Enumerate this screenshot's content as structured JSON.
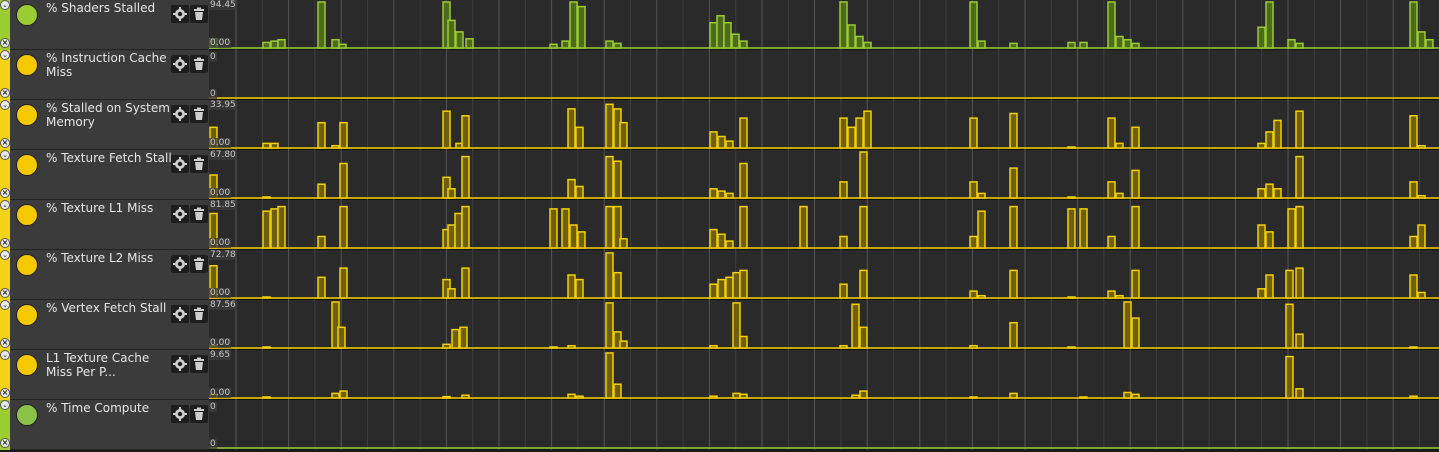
{
  "rows": [
    {
      "name": "% Shaders Stalled",
      "color": "#9acd32",
      "max": "94.45",
      "min": "0.00",
      "stripe": "#9acd32"
    },
    {
      "name": "% Instruction Cache Miss",
      "color": "#f5c900",
      "max": "0",
      "min": "0",
      "stripe": "#f2d31a"
    },
    {
      "name": "% Stalled on System Memory",
      "color": "#f5c900",
      "max": "33.95",
      "min": "0.00",
      "stripe": "#f2d31a"
    },
    {
      "name": "% Texture Fetch Stall",
      "color": "#f5c900",
      "max": "67.80",
      "min": "0.00",
      "stripe": "#f2d31a"
    },
    {
      "name": "% Texture L1 Miss",
      "color": "#f5c900",
      "max": "81.85",
      "min": "0.00",
      "stripe": "#f2d31a"
    },
    {
      "name": "% Texture L2 Miss",
      "color": "#f5c900",
      "max": "72.78",
      "min": "0.00",
      "stripe": "#f2d31a"
    },
    {
      "name": "% Vertex Fetch Stall",
      "color": "#f5c900",
      "max": "87.56",
      "min": "0.00",
      "stripe": "#f2d31a"
    },
    {
      "name": "L1 Texture Cache Miss Per P...",
      "color": "#f5c900",
      "max": "9.65",
      "min": "0.00",
      "stripe": "#f2d31a"
    },
    {
      "name": "% Time Compute",
      "color": "#8bc34a",
      "max": "0",
      "min": "0",
      "stripe": "#9acd32"
    }
  ],
  "icons": {
    "gear": "gear-icon",
    "trash": "trash-icon",
    "remove": "remove-icon",
    "collapse": "collapse-icon"
  },
  "colors": {
    "green_line": "#9acd32",
    "green_fill": "#4e6a1c",
    "yellow_line": "#f5d000",
    "yellow_fill": "#6e5e10",
    "grid": "#3c3c3c",
    "grid_major": "#555555"
  },
  "series": {
    "shaders": {
      "kind": "green",
      "bars": [
        [
          210,
          0.2
        ],
        [
          263,
          0.12
        ],
        [
          271,
          0.15
        ],
        [
          278,
          0.18
        ],
        [
          318,
          1.0
        ],
        [
          332,
          0.18
        ],
        [
          339,
          0.08
        ],
        [
          443,
          1.0
        ],
        [
          448,
          0.6
        ],
        [
          456,
          0.35
        ],
        [
          466,
          0.2
        ],
        [
          550,
          0.08
        ],
        [
          562,
          0.15
        ],
        [
          570,
          1.0
        ],
        [
          578,
          0.9
        ],
        [
          606,
          0.15
        ],
        [
          614,
          0.1
        ],
        [
          710,
          0.55
        ],
        [
          717,
          0.7
        ],
        [
          724,
          0.55
        ],
        [
          732,
          0.3
        ],
        [
          740,
          0.15
        ],
        [
          840,
          1.0
        ],
        [
          848,
          0.5
        ],
        [
          856,
          0.25
        ],
        [
          864,
          0.12
        ],
        [
          970,
          1.0
        ],
        [
          978,
          0.15
        ],
        [
          1010,
          0.1
        ],
        [
          1068,
          0.12
        ],
        [
          1080,
          0.12
        ],
        [
          1108,
          1.0
        ],
        [
          1116,
          0.25
        ],
        [
          1124,
          0.18
        ],
        [
          1132,
          0.1
        ],
        [
          1258,
          0.45
        ],
        [
          1266,
          1.0
        ],
        [
          1288,
          0.18
        ],
        [
          1296,
          0.1
        ],
        [
          1410,
          1.0
        ],
        [
          1418,
          0.35
        ],
        [
          1426,
          0.18
        ]
      ]
    },
    "icache": {
      "kind": "yellow",
      "bars": []
    },
    "sysmem": {
      "kind": "yellow",
      "bars": [
        [
          210,
          0.45
        ],
        [
          263,
          0.1
        ],
        [
          271,
          0.1
        ],
        [
          318,
          0.55
        ],
        [
          332,
          0.05
        ],
        [
          340,
          0.55
        ],
        [
          443,
          0.8
        ],
        [
          456,
          0.1
        ],
        [
          462,
          0.7
        ],
        [
          568,
          0.85
        ],
        [
          576,
          0.45
        ],
        [
          606,
          0.95
        ],
        [
          614,
          0.85
        ],
        [
          620,
          0.55
        ],
        [
          710,
          0.35
        ],
        [
          718,
          0.25
        ],
        [
          726,
          0.15
        ],
        [
          740,
          0.65
        ],
        [
          840,
          0.65
        ],
        [
          848,
          0.45
        ],
        [
          856,
          0.65
        ],
        [
          864,
          0.8
        ],
        [
          970,
          0.65
        ],
        [
          1010,
          0.75
        ],
        [
          1068,
          0.02
        ],
        [
          1108,
          0.65
        ],
        [
          1116,
          0.1
        ],
        [
          1132,
          0.45
        ],
        [
          1258,
          0.1
        ],
        [
          1266,
          0.35
        ],
        [
          1274,
          0.6
        ],
        [
          1296,
          0.8
        ],
        [
          1410,
          0.7
        ],
        [
          1418,
          0.05
        ]
      ]
    },
    "texfetch": {
      "kind": "yellow",
      "bars": [
        [
          210,
          0.5
        ],
        [
          263,
          0.02
        ],
        [
          318,
          0.3
        ],
        [
          340,
          0.75
        ],
        [
          443,
          0.45
        ],
        [
          448,
          0.2
        ],
        [
          462,
          0.9
        ],
        [
          568,
          0.4
        ],
        [
          576,
          0.25
        ],
        [
          606,
          0.9
        ],
        [
          614,
          0.8
        ],
        [
          710,
          0.2
        ],
        [
          718,
          0.15
        ],
        [
          726,
          0.1
        ],
        [
          740,
          0.75
        ],
        [
          840,
          0.35
        ],
        [
          860,
          1.0
        ],
        [
          970,
          0.35
        ],
        [
          978,
          0.1
        ],
        [
          1010,
          0.65
        ],
        [
          1068,
          0.02
        ],
        [
          1108,
          0.35
        ],
        [
          1116,
          0.1
        ],
        [
          1132,
          0.6
        ],
        [
          1258,
          0.2
        ],
        [
          1266,
          0.3
        ],
        [
          1274,
          0.2
        ],
        [
          1296,
          0.9
        ],
        [
          1410,
          0.35
        ],
        [
          1418,
          0.05
        ]
      ]
    },
    "texl1": {
      "kind": "yellow",
      "bars": [
        [
          210,
          0.75
        ],
        [
          263,
          0.8
        ],
        [
          271,
          0.85
        ],
        [
          278,
          0.9
        ],
        [
          318,
          0.25
        ],
        [
          340,
          0.9
        ],
        [
          443,
          0.4
        ],
        [
          448,
          0.5
        ],
        [
          455,
          0.75
        ],
        [
          462,
          0.9
        ],
        [
          550,
          0.85
        ],
        [
          562,
          0.85
        ],
        [
          570,
          0.5
        ],
        [
          578,
          0.35
        ],
        [
          606,
          0.9
        ],
        [
          614,
          0.9
        ],
        [
          620,
          0.2
        ],
        [
          710,
          0.4
        ],
        [
          718,
          0.3
        ],
        [
          726,
          0.15
        ],
        [
          740,
          0.9
        ],
        [
          800,
          0.9
        ],
        [
          840,
          0.25
        ],
        [
          860,
          0.9
        ],
        [
          970,
          0.25
        ],
        [
          978,
          0.8
        ],
        [
          1010,
          0.9
        ],
        [
          1068,
          0.85
        ],
        [
          1080,
          0.85
        ],
        [
          1108,
          0.25
        ],
        [
          1132,
          0.9
        ],
        [
          1258,
          0.5
        ],
        [
          1266,
          0.35
        ],
        [
          1288,
          0.85
        ],
        [
          1296,
          0.9
        ],
        [
          1410,
          0.25
        ],
        [
          1418,
          0.5
        ]
      ]
    },
    "texl2": {
      "kind": "yellow",
      "bars": [
        [
          210,
          0.7
        ],
        [
          263,
          0.02
        ],
        [
          318,
          0.45
        ],
        [
          340,
          0.65
        ],
        [
          443,
          0.4
        ],
        [
          448,
          0.2
        ],
        [
          462,
          0.65
        ],
        [
          568,
          0.5
        ],
        [
          576,
          0.4
        ],
        [
          606,
          0.98
        ],
        [
          614,
          0.55
        ],
        [
          710,
          0.3
        ],
        [
          718,
          0.4
        ],
        [
          726,
          0.45
        ],
        [
          733,
          0.55
        ],
        [
          740,
          0.6
        ],
        [
          840,
          0.3
        ],
        [
          860,
          0.6
        ],
        [
          970,
          0.15
        ],
        [
          978,
          0.05
        ],
        [
          1010,
          0.6
        ],
        [
          1068,
          0.02
        ],
        [
          1108,
          0.15
        ],
        [
          1116,
          0.05
        ],
        [
          1132,
          0.6
        ],
        [
          1258,
          0.2
        ],
        [
          1266,
          0.5
        ],
        [
          1286,
          0.6
        ],
        [
          1296,
          0.65
        ],
        [
          1410,
          0.5
        ],
        [
          1418,
          0.12
        ]
      ]
    },
    "vertex": {
      "kind": "yellow",
      "bars": [
        [
          210,
          0.05
        ],
        [
          263,
          0.02
        ],
        [
          332,
          1.0
        ],
        [
          338,
          0.45
        ],
        [
          443,
          0.08
        ],
        [
          452,
          0.4
        ],
        [
          460,
          0.45
        ],
        [
          550,
          0.02
        ],
        [
          568,
          0.05
        ],
        [
          606,
          0.98
        ],
        [
          614,
          0.35
        ],
        [
          620,
          0.15
        ],
        [
          710,
          0.05
        ],
        [
          733,
          0.98
        ],
        [
          740,
          0.25
        ],
        [
          840,
          0.05
        ],
        [
          852,
          0.95
        ],
        [
          860,
          0.45
        ],
        [
          970,
          0.05
        ],
        [
          1010,
          0.55
        ],
        [
          1068,
          0.02
        ],
        [
          1124,
          1.0
        ],
        [
          1132,
          0.65
        ],
        [
          1286,
          0.95
        ],
        [
          1296,
          0.3
        ],
        [
          1410,
          0.02
        ]
      ]
    },
    "l1tex": {
      "kind": "yellow",
      "bars": [
        [
          210,
          0.08
        ],
        [
          263,
          0.02
        ],
        [
          332,
          0.1
        ],
        [
          340,
          0.15
        ],
        [
          443,
          0.03
        ],
        [
          462,
          0.06
        ],
        [
          568,
          0.08
        ],
        [
          576,
          0.04
        ],
        [
          606,
          0.98
        ],
        [
          614,
          0.3
        ],
        [
          710,
          0.04
        ],
        [
          733,
          0.1
        ],
        [
          740,
          0.08
        ],
        [
          852,
          0.06
        ],
        [
          860,
          0.15
        ],
        [
          970,
          0.02
        ],
        [
          1010,
          0.1
        ],
        [
          1080,
          0.02
        ],
        [
          1124,
          0.12
        ],
        [
          1132,
          0.08
        ],
        [
          1286,
          0.9
        ],
        [
          1296,
          0.2
        ],
        [
          1410,
          0.04
        ]
      ]
    },
    "compute": {
      "kind": "green",
      "bars": []
    }
  }
}
